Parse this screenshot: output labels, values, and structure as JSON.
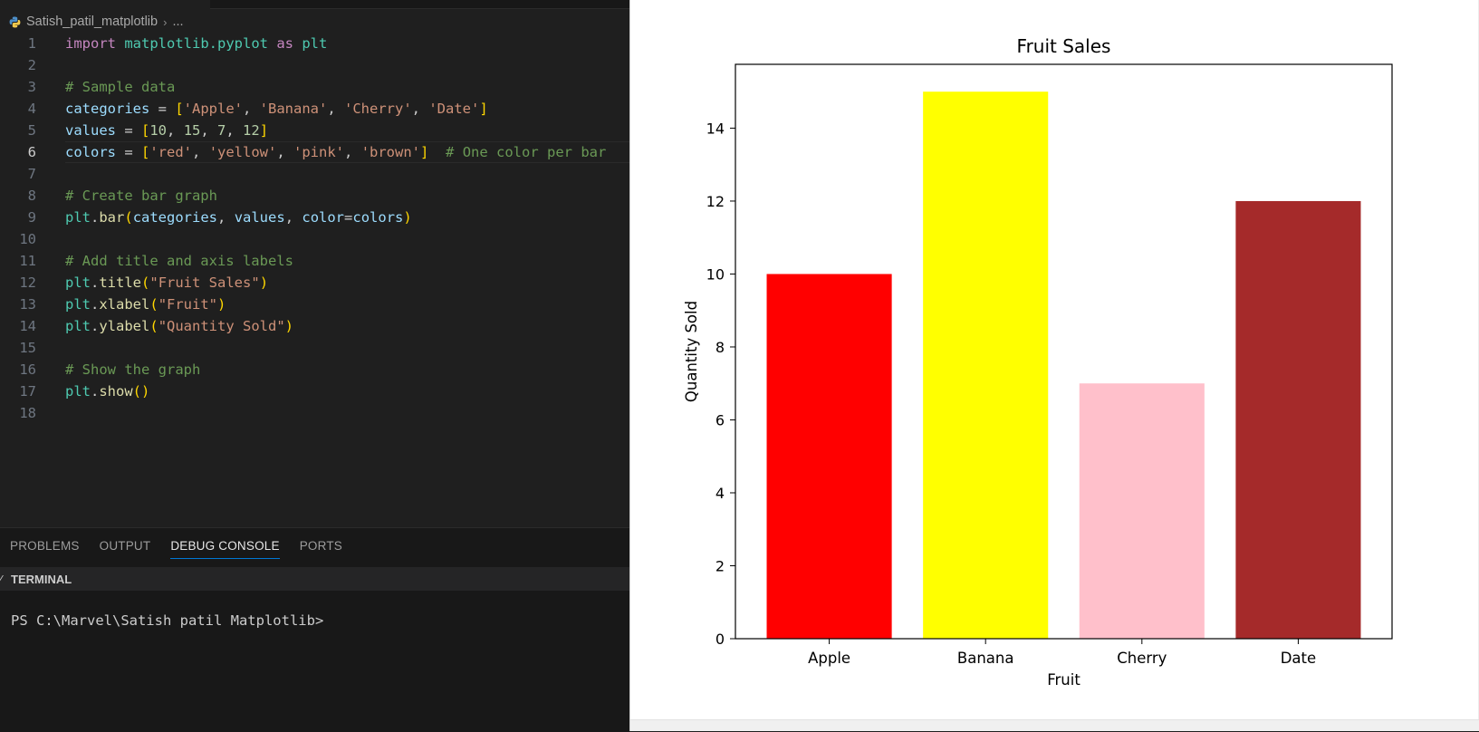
{
  "editor": {
    "breadcrumb": {
      "folder": "Satish_patil_matplotlib",
      "ellipsis": "..."
    },
    "active_line": 6,
    "lines": [
      {
        "n": "1",
        "tokens": [
          [
            "kw",
            "import"
          ],
          [
            "plain",
            " "
          ],
          [
            "mod",
            "matplotlib.pyplot"
          ],
          [
            "plain",
            " "
          ],
          [
            "kw",
            "as"
          ],
          [
            "plain",
            " "
          ],
          [
            "mod",
            "plt"
          ]
        ]
      },
      {
        "n": "2",
        "tokens": []
      },
      {
        "n": "3",
        "tokens": [
          [
            "com",
            "# Sample data"
          ]
        ]
      },
      {
        "n": "4",
        "tokens": [
          [
            "var",
            "categories"
          ],
          [
            "plain",
            " = "
          ],
          [
            "br",
            "["
          ],
          [
            "str",
            "'Apple'"
          ],
          [
            "plain",
            ", "
          ],
          [
            "str",
            "'Banana'"
          ],
          [
            "plain",
            ", "
          ],
          [
            "str",
            "'Cherry'"
          ],
          [
            "plain",
            ", "
          ],
          [
            "str",
            "'Date'"
          ],
          [
            "br",
            "]"
          ]
        ]
      },
      {
        "n": "5",
        "tokens": [
          [
            "var",
            "values"
          ],
          [
            "plain",
            " = "
          ],
          [
            "br",
            "["
          ],
          [
            "num",
            "10"
          ],
          [
            "plain",
            ", "
          ],
          [
            "num",
            "15"
          ],
          [
            "plain",
            ", "
          ],
          [
            "num",
            "7"
          ],
          [
            "plain",
            ", "
          ],
          [
            "num",
            "12"
          ],
          [
            "br",
            "]"
          ]
        ]
      },
      {
        "n": "6",
        "tokens": [
          [
            "var",
            "colors"
          ],
          [
            "plain",
            " = "
          ],
          [
            "br",
            "["
          ],
          [
            "str",
            "'red'"
          ],
          [
            "plain",
            ", "
          ],
          [
            "str",
            "'yellow'"
          ],
          [
            "plain",
            ", "
          ],
          [
            "str",
            "'pink'"
          ],
          [
            "plain",
            ", "
          ],
          [
            "str",
            "'brown'"
          ],
          [
            "br",
            "]"
          ],
          [
            "plain",
            "  "
          ],
          [
            "com",
            "# One color per bar"
          ]
        ]
      },
      {
        "n": "7",
        "tokens": []
      },
      {
        "n": "8",
        "tokens": [
          [
            "com",
            "# Create bar graph"
          ]
        ]
      },
      {
        "n": "9",
        "tokens": [
          [
            "mod",
            "plt"
          ],
          [
            "plain",
            "."
          ],
          [
            "fn",
            "bar"
          ],
          [
            "br",
            "("
          ],
          [
            "var",
            "categories"
          ],
          [
            "plain",
            ", "
          ],
          [
            "var",
            "values"
          ],
          [
            "plain",
            ", "
          ],
          [
            "var",
            "color"
          ],
          [
            "plain",
            "="
          ],
          [
            "var",
            "colors"
          ],
          [
            "br",
            ")"
          ]
        ]
      },
      {
        "n": "10",
        "tokens": []
      },
      {
        "n": "11",
        "tokens": [
          [
            "com",
            "# Add title and axis labels"
          ]
        ]
      },
      {
        "n": "12",
        "tokens": [
          [
            "mod",
            "plt"
          ],
          [
            "plain",
            "."
          ],
          [
            "fn",
            "title"
          ],
          [
            "br",
            "("
          ],
          [
            "str",
            "\"Fruit Sales\""
          ],
          [
            "br",
            ")"
          ]
        ]
      },
      {
        "n": "13",
        "tokens": [
          [
            "mod",
            "plt"
          ],
          [
            "plain",
            "."
          ],
          [
            "fn",
            "xlabel"
          ],
          [
            "br",
            "("
          ],
          [
            "str",
            "\"Fruit\""
          ],
          [
            "br",
            ")"
          ]
        ]
      },
      {
        "n": "14",
        "tokens": [
          [
            "mod",
            "plt"
          ],
          [
            "plain",
            "."
          ],
          [
            "fn",
            "ylabel"
          ],
          [
            "br",
            "("
          ],
          [
            "str",
            "\"Quantity Sold\""
          ],
          [
            "br",
            ")"
          ]
        ]
      },
      {
        "n": "15",
        "tokens": []
      },
      {
        "n": "16",
        "tokens": [
          [
            "com",
            "# Show the graph"
          ]
        ]
      },
      {
        "n": "17",
        "tokens": [
          [
            "mod",
            "plt"
          ],
          [
            "plain",
            "."
          ],
          [
            "fn",
            "show"
          ],
          [
            "br",
            "()"
          ]
        ]
      },
      {
        "n": "18",
        "tokens": []
      }
    ]
  },
  "panel": {
    "tabs": [
      {
        "label": "PROBLEMS",
        "active": false
      },
      {
        "label": "OUTPUT",
        "active": false
      },
      {
        "label": "DEBUG CONSOLE",
        "active": true
      },
      {
        "label": "PORTS",
        "active": false
      }
    ],
    "terminal_header": "TERMINAL",
    "prompt": "PS C:\\Marvel\\Satish patil Matplotlib>"
  },
  "chart_data": {
    "type": "bar",
    "title": "Fruit Sales",
    "xlabel": "Fruit",
    "ylabel": "Quantity Sold",
    "categories": [
      "Apple",
      "Banana",
      "Cherry",
      "Date"
    ],
    "values": [
      10,
      15,
      7,
      12
    ],
    "colors": [
      "#ff0000",
      "#ffff00",
      "#ffc0cb",
      "#a52a2a"
    ],
    "ylim": [
      0,
      15.75
    ],
    "yticks": [
      0,
      2,
      4,
      6,
      8,
      10,
      12,
      14
    ],
    "grid": false
  },
  "colors": {
    "editor_bg": "#1f1f1f",
    "panel_bg": "#181818",
    "accent": "#0078d4"
  }
}
